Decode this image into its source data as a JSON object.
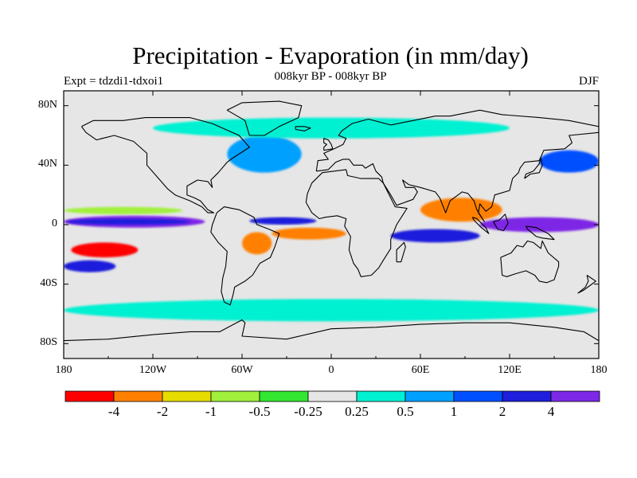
{
  "header": {
    "title": "Precipitation - Evaporation (in mm/day)",
    "subtitle": "008kyr BP - 008kyr BP",
    "expt": "Expt = tdzdi1-tdxoi1",
    "season": "DJF"
  },
  "axes": {
    "lat_labels": [
      "80N",
      "40N",
      "0",
      "40S",
      "80S"
    ],
    "lat_values": [
      80,
      40,
      0,
      -40,
      -80
    ],
    "lon_labels": [
      "180",
      "120W",
      "60W",
      "0",
      "60E",
      "120E",
      "180"
    ],
    "lon_values": [
      -180,
      -120,
      -60,
      0,
      60,
      120,
      180
    ]
  },
  "colorbar": {
    "colors": [
      "#ff0000",
      "#ff8000",
      "#e6dc00",
      "#a0f03c",
      "#32e632",
      "#e6e6e6",
      "#00f0d2",
      "#00a0ff",
      "#0050ff",
      "#1e1edc",
      "#7d28e6"
    ],
    "labels": [
      "-4",
      "-2",
      "-1",
      "-0.5",
      "-0.25",
      "0.25",
      "0.5",
      "1",
      "2",
      "4"
    ]
  },
  "chart_data": {
    "type": "heatmap",
    "title": "Precipitation - Evaporation (in mm/day)",
    "subtitle": "008kyr BP - 008kyr BP",
    "variable": "P - E",
    "units": "mm/day",
    "season": "DJF",
    "lon_range": [
      -180,
      180
    ],
    "lat_range": [
      -90,
      90
    ],
    "levels": [
      -4,
      -2,
      -1,
      -0.5,
      -0.25,
      0.25,
      0.5,
      1,
      2,
      4
    ],
    "features": [
      {
        "name": "equatorial-pacific-band",
        "lon": [
          -180,
          -85
        ],
        "lat": [
          -2,
          6
        ],
        "value": 5
      },
      {
        "name": "equatorial-pacific-inner",
        "lon": [
          -178,
          -95
        ],
        "lat": [
          0,
          4
        ],
        "value": 3
      },
      {
        "name": "north-equatorial-pacific-dry",
        "lon": [
          -180,
          -100
        ],
        "lat": [
          7,
          12
        ],
        "value": -0.75
      },
      {
        "name": "southeast-pacific-dry",
        "lon": [
          -175,
          -130
        ],
        "lat": [
          -22,
          -12
        ],
        "value": -5
      },
      {
        "name": "spcz-wet",
        "lon": [
          -180,
          -145
        ],
        "lat": [
          -32,
          -24
        ],
        "value": 3
      },
      {
        "name": "south-america-dry",
        "lon": [
          -60,
          -40
        ],
        "lat": [
          -20,
          -5
        ],
        "value": -2.5
      },
      {
        "name": "south-atlantic-dry",
        "lon": [
          -40,
          10
        ],
        "lat": [
          -10,
          -2
        ],
        "value": -2.5
      },
      {
        "name": "atlantic-itcz",
        "lon": [
          -55,
          -10
        ],
        "lat": [
          0,
          5
        ],
        "value": 3
      },
      {
        "name": "india-dry",
        "lon": [
          60,
          115
        ],
        "lat": [
          2,
          18
        ],
        "value": -2.5
      },
      {
        "name": "indian-ocean-wet",
        "lon": [
          40,
          100
        ],
        "lat": [
          -12,
          -3
        ],
        "value": 3
      },
      {
        "name": "maritime-continent-wet",
        "lon": [
          100,
          180
        ],
        "lat": [
          -5,
          5
        ],
        "value": 5
      },
      {
        "name": "north-pacific-storm-track",
        "lon": [
          140,
          180
        ],
        "lat": [
          35,
          50
        ],
        "value": 1.5
      },
      {
        "name": "north-atlantic",
        "lon": [
          -70,
          -20
        ],
        "lat": [
          35,
          60
        ],
        "value": 0.75
      },
      {
        "name": "southern-ocean",
        "lon": [
          -180,
          180
        ],
        "lat": [
          -65,
          -50
        ],
        "value": 0.4
      },
      {
        "name": "northern-high-latitudes",
        "lon": [
          -120,
          120
        ],
        "lat": [
          58,
          72
        ],
        "value": 0.4
      }
    ]
  }
}
